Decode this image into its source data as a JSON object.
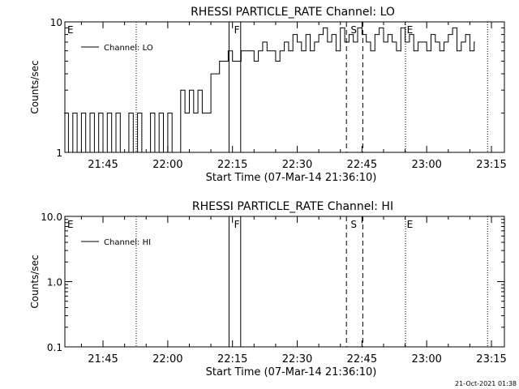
{
  "chart_data": [
    {
      "type": "line",
      "title": "RHESSI PARTICLE_RATE Channel: LO",
      "xlabel": "Start Time (07-Mar-14 21:36:10)",
      "ylabel": "Counts/sec",
      "yscale": "log",
      "ylim": [
        1,
        10
      ],
      "y_tick_labels": [
        "1",
        "10"
      ],
      "x_tick_labels": [
        "21:45",
        "22:00",
        "22:15",
        "22:30",
        "22:45",
        "23:00",
        "23:15"
      ],
      "legend": {
        "label": "Channel: LO",
        "position": "top-left"
      },
      "grid": false,
      "series": [
        {
          "name": "Channel: LO",
          "x": [
            "21:36",
            "21:37",
            "21:38",
            "21:39",
            "21:40",
            "21:41",
            "21:42",
            "21:43",
            "21:44",
            "21:45",
            "21:46",
            "21:47",
            "21:48",
            "21:49",
            "21:50",
            "21:51",
            "21:52",
            "21:53",
            "21:54",
            "21:55",
            "21:56",
            "21:57",
            "21:58",
            "21:59",
            "22:00",
            "22:01",
            "22:02",
            "22:03",
            "22:04",
            "22:05",
            "22:06",
            "22:07",
            "22:08",
            "22:09",
            "22:10",
            "22:11",
            "22:12",
            "22:13",
            "22:14",
            "22:15",
            "22:16",
            "22:17",
            "22:18",
            "22:19",
            "22:20",
            "22:21",
            "22:22",
            "22:23",
            "22:24",
            "22:25",
            "22:26",
            "22:27",
            "22:28",
            "22:29",
            "22:30",
            "22:31",
            "22:32",
            "22:33",
            "22:34",
            "22:35",
            "22:36",
            "22:37",
            "22:38",
            "22:39",
            "22:40",
            "22:41",
            "22:42",
            "22:43",
            "22:44",
            "22:45",
            "22:46",
            "22:47",
            "22:48",
            "22:49",
            "22:50",
            "22:51",
            "22:52",
            "22:53",
            "22:54",
            "22:55",
            "22:56",
            "22:57",
            "22:58",
            "22:59",
            "23:00",
            "23:01",
            "23:02",
            "23:03",
            "23:04",
            "23:05",
            "23:06",
            "23:07",
            "23:08",
            "23:09",
            "23:10",
            "23:11"
          ],
          "y": [
            2,
            1,
            2,
            1,
            2,
            1,
            2,
            1,
            2,
            1,
            2,
            1,
            2,
            1,
            1,
            2,
            1,
            2,
            1,
            1,
            2,
            1,
            2,
            1,
            2,
            1,
            1,
            3,
            2,
            3,
            2,
            3,
            2,
            2,
            4,
            4,
            5,
            5,
            6,
            5,
            5,
            6,
            6,
            6,
            5,
            6,
            7,
            6,
            6,
            5,
            6,
            7,
            6,
            8,
            7,
            6,
            8,
            6,
            7,
            8,
            9,
            7,
            8,
            6,
            9,
            7,
            8,
            7,
            9,
            8,
            7,
            6,
            8,
            9,
            7,
            8,
            7,
            6,
            9,
            7,
            8,
            6,
            7,
            7,
            6,
            8,
            7,
            6,
            7,
            8,
            9,
            6,
            7,
            8,
            6,
            7
          ]
        }
      ],
      "annotations": [
        "E",
        "F",
        "S",
        "E"
      ]
    },
    {
      "type": "line",
      "title": "RHESSI PARTICLE_RATE Channel: HI",
      "xlabel": "Start Time (07-Mar-14 21:36:10)",
      "ylabel": "Counts/sec",
      "yscale": "log",
      "ylim": [
        0.1,
        10
      ],
      "y_tick_labels": [
        "0.1",
        "1.0",
        "10.0"
      ],
      "x_tick_labels": [
        "21:45",
        "22:00",
        "22:15",
        "22:30",
        "22:45",
        "23:00",
        "23:15"
      ],
      "legend": {
        "label": "Channel: HI",
        "position": "top-left"
      },
      "grid": false,
      "series": [
        {
          "name": "Channel: HI",
          "x": [],
          "y": []
        }
      ],
      "annotations": [
        "E",
        "F",
        "S",
        "E"
      ]
    }
  ],
  "footer_date": "21-Oct-2021 01:38",
  "line_color": "#000000"
}
